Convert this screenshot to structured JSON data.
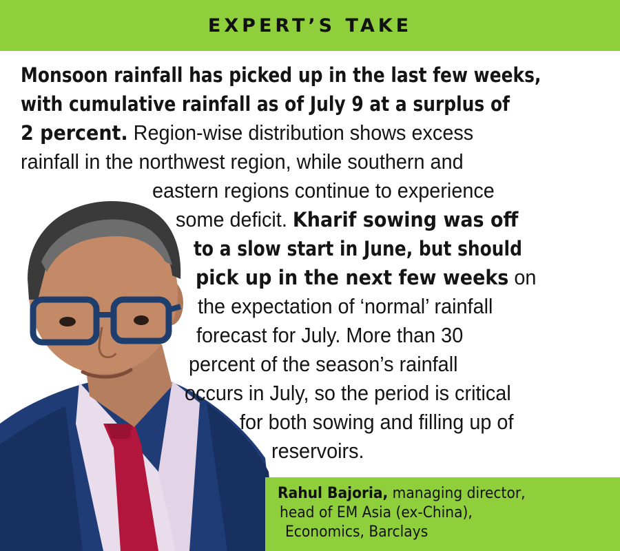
{
  "header": {
    "title": "EXPERT’S TAKE"
  },
  "body": {
    "lines": [
      [
        "Monsoon rainfall has picked up in the last few weeks,",
        ""
      ],
      [
        "with cumulative rainfall as of July 9 at a surplus of",
        ""
      ],
      [
        "2 percent.",
        " Region-wise distribution shows excess"
      ],
      [
        "",
        "rainfall in the northwest region, while southern and"
      ],
      [
        "",
        "eastern regions continue to experience"
      ],
      [
        "Kharif sowing was off",
        "some deficit. "
      ],
      [
        "to a slow start in June, but should",
        ""
      ],
      [
        "pick up in the next few weeks",
        " on"
      ],
      [
        "",
        "the expectation of ‘normal’ rainfall"
      ],
      [
        "",
        "forecast for July. More than 30"
      ],
      [
        "",
        "percent of the season’s rainfall"
      ],
      [
        "",
        "occurs in July, so the period is critical"
      ],
      [
        "",
        "for both sowing and filling up of"
      ],
      [
        "",
        "reservoirs."
      ]
    ]
  },
  "caption": {
    "name": "Rahul Bajoria,",
    "role_line1": " managing director,",
    "role_line2": "head of EM Asia (ex-China),",
    "role_line3": "Economics, Barclays"
  },
  "colors": {
    "accent": "#8fcf3c",
    "text": "#141414"
  },
  "photo": {
    "subject": "portrait-photo"
  }
}
